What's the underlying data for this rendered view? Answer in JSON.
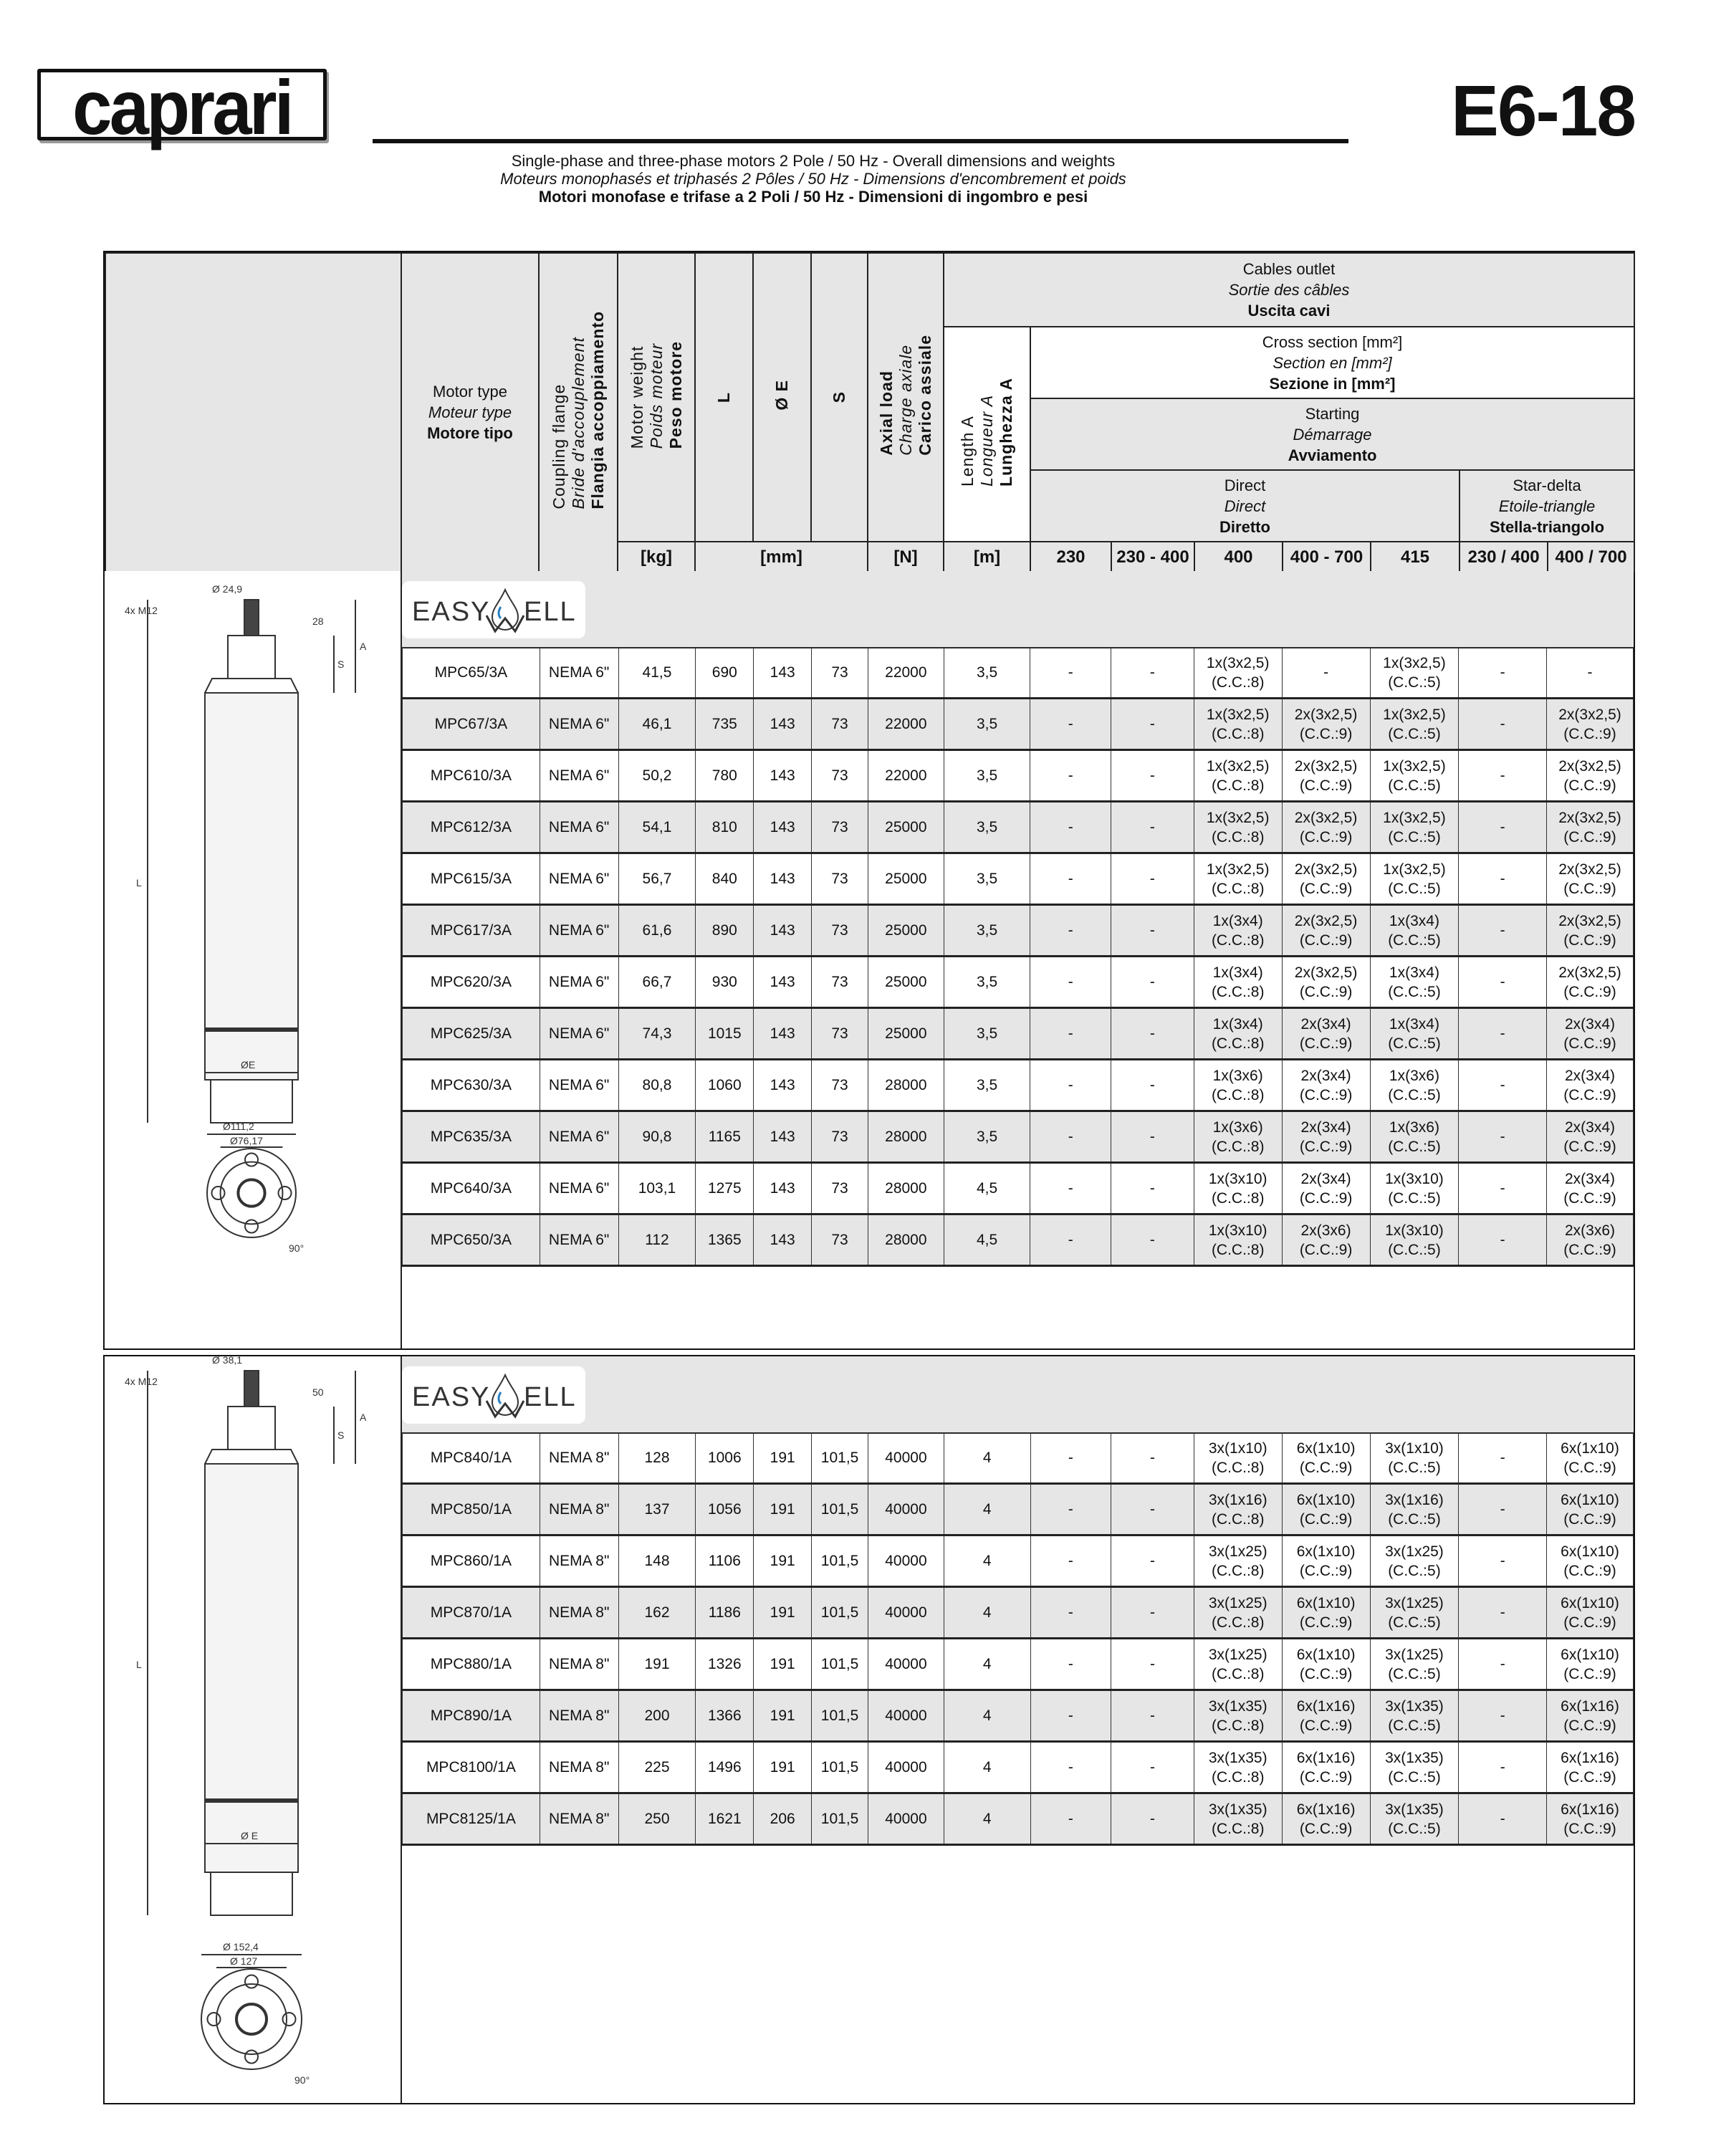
{
  "brand": "caprari",
  "code": "E6-18",
  "subtitle": [
    "Single-phase and three-phase motors 2 Pole / 50 Hz - Overall dimensions and weights",
    "Moteurs monophasés et triphasés 2 Pôles / 50 Hz - Dimensions d'encombrement et poids",
    "Motori monofase e trifase a 2 Poli / 50 Hz - Dimensioni di ingombro e pesi"
  ],
  "header": {
    "motor_type": [
      "Motor type",
      "Moteur type",
      "Motore tipo"
    ],
    "coupling_flange": [
      "Coupling flange",
      "Bride d'accouplement",
      "Flangia accoppiamento"
    ],
    "motor_weight": [
      "Motor weight",
      "Poids moteur",
      "Peso motore"
    ],
    "L": "L",
    "E": "Ø E",
    "S": "S",
    "axial_load": [
      "Axial load",
      "Charge axiale",
      "Carico assiale"
    ],
    "cables_outlet": [
      "Cables outlet",
      "Sortie des câbles",
      "Uscita cavi"
    ],
    "length_a": [
      "Length A",
      "Longueur A",
      "Lunghezza A"
    ],
    "cross_section": [
      "Cross section [mm²]",
      "Section en [mm²]",
      "Sezione in [mm²]"
    ],
    "starting": [
      "Starting",
      "Démarrage",
      "Avviamento"
    ],
    "direct": [
      "Direct",
      "Direct",
      "Diretto"
    ],
    "star_delta": [
      "Star-delta",
      "Etoile-triangle",
      "Stella-triangolo"
    ],
    "units": {
      "kg": "[kg]",
      "mm": "[mm]",
      "N": "[N]",
      "m": "[m]"
    },
    "voltages": [
      "230",
      "230 - 400",
      "400",
      "400 - 700",
      "415",
      "230 / 400",
      "400 / 700"
    ]
  },
  "sections": [
    {
      "logo": {
        "left": "EASY",
        "right": "ELL"
      },
      "drawing_labels": {
        "shaft": "Ø 24,9",
        "bolts": "4x M12",
        "dim1": "28",
        "S": "S",
        "A": "A",
        "L": "L",
        "E": "ØE",
        "outer": "Ø111,2",
        "inner": "Ø76,17",
        "angle": "90°"
      },
      "rows": [
        [
          "MPC65/3A",
          "NEMA 6\"",
          "41,5",
          "690",
          "143",
          "73",
          "22000",
          "3,5",
          "-",
          "-",
          "1x(3x2,5)\n(C.C.:8)",
          "-",
          "1x(3x2,5)\n(C.C.:5)",
          "-",
          "-"
        ],
        [
          "MPC67/3A",
          "NEMA 6\"",
          "46,1",
          "735",
          "143",
          "73",
          "22000",
          "3,5",
          "-",
          "-",
          "1x(3x2,5)\n(C.C.:8)",
          "2x(3x2,5)\n(C.C.:9)",
          "1x(3x2,5)\n(C.C.:5)",
          "-",
          "2x(3x2,5)\n(C.C.:9)"
        ],
        [
          "MPC610/3A",
          "NEMA 6\"",
          "50,2",
          "780",
          "143",
          "73",
          "22000",
          "3,5",
          "-",
          "-",
          "1x(3x2,5)\n(C.C.:8)",
          "2x(3x2,5)\n(C.C.:9)",
          "1x(3x2,5)\n(C.C.:5)",
          "-",
          "2x(3x2,5)\n(C.C.:9)"
        ],
        [
          "MPC612/3A",
          "NEMA 6\"",
          "54,1",
          "810",
          "143",
          "73",
          "25000",
          "3,5",
          "-",
          "-",
          "1x(3x2,5)\n(C.C.:8)",
          "2x(3x2,5)\n(C.C.:9)",
          "1x(3x2,5)\n(C.C.:5)",
          "-",
          "2x(3x2,5)\n(C.C.:9)"
        ],
        [
          "MPC615/3A",
          "NEMA 6\"",
          "56,7",
          "840",
          "143",
          "73",
          "25000",
          "3,5",
          "-",
          "-",
          "1x(3x2,5)\n(C.C.:8)",
          "2x(3x2,5)\n(C.C.:9)",
          "1x(3x2,5)\n(C.C.:5)",
          "-",
          "2x(3x2,5)\n(C.C.:9)"
        ],
        [
          "MPC617/3A",
          "NEMA 6\"",
          "61,6",
          "890",
          "143",
          "73",
          "25000",
          "3,5",
          "-",
          "-",
          "1x(3x4)\n(C.C.:8)",
          "2x(3x2,5)\n(C.C.:9)",
          "1x(3x4)\n(C.C.:5)",
          "-",
          "2x(3x2,5)\n(C.C.:9)"
        ],
        [
          "MPC620/3A",
          "NEMA 6\"",
          "66,7",
          "930",
          "143",
          "73",
          "25000",
          "3,5",
          "-",
          "-",
          "1x(3x4)\n(C.C.:8)",
          "2x(3x2,5)\n(C.C.:9)",
          "1x(3x4)\n(C.C.:5)",
          "-",
          "2x(3x2,5)\n(C.C.:9)"
        ],
        [
          "MPC625/3A",
          "NEMA 6\"",
          "74,3",
          "1015",
          "143",
          "73",
          "25000",
          "3,5",
          "-",
          "-",
          "1x(3x4)\n(C.C.:8)",
          "2x(3x4)\n(C.C.:9)",
          "1x(3x4)\n(C.C.:5)",
          "-",
          "2x(3x4)\n(C.C.:9)"
        ],
        [
          "MPC630/3A",
          "NEMA 6\"",
          "80,8",
          "1060",
          "143",
          "73",
          "28000",
          "3,5",
          "-",
          "-",
          "1x(3x6)\n(C.C.:8)",
          "2x(3x4)\n(C.C.:9)",
          "1x(3x6)\n(C.C.:5)",
          "-",
          "2x(3x4)\n(C.C.:9)"
        ],
        [
          "MPC635/3A",
          "NEMA 6\"",
          "90,8",
          "1165",
          "143",
          "73",
          "28000",
          "3,5",
          "-",
          "-",
          "1x(3x6)\n(C.C.:8)",
          "2x(3x4)\n(C.C.:9)",
          "1x(3x6)\n(C.C.:5)",
          "-",
          "2x(3x4)\n(C.C.:9)"
        ],
        [
          "MPC640/3A",
          "NEMA 6\"",
          "103,1",
          "1275",
          "143",
          "73",
          "28000",
          "4,5",
          "-",
          "-",
          "1x(3x10)\n(C.C.:8)",
          "2x(3x4)\n(C.C.:9)",
          "1x(3x10)\n(C.C.:5)",
          "-",
          "2x(3x4)\n(C.C.:9)"
        ],
        [
          "MPC650/3A",
          "NEMA 6\"",
          "112",
          "1365",
          "143",
          "73",
          "28000",
          "4,5",
          "-",
          "-",
          "1x(3x10)\n(C.C.:8)",
          "2x(3x6)\n(C.C.:9)",
          "1x(3x10)\n(C.C.:5)",
          "-",
          "2x(3x6)\n(C.C.:9)"
        ]
      ]
    },
    {
      "logo": {
        "left": "EASY",
        "right": "ELL"
      },
      "drawing_labels": {
        "shaft": "Ø 38,1",
        "bolts": "4x M12",
        "dim1": "50",
        "S": "S",
        "A": "A",
        "L": "L",
        "E": "Ø E",
        "outer": "Ø 152,4",
        "inner": "Ø 127",
        "angle": "90°"
      },
      "rows": [
        [
          "MPC840/1A",
          "NEMA 8\"",
          "128",
          "1006",
          "191",
          "101,5",
          "40000",
          "4",
          "-",
          "-",
          "3x(1x10)\n(C.C.:8)",
          "6x(1x10)\n(C.C.:9)",
          "3x(1x10)\n(C.C.:5)",
          "-",
          "6x(1x10)\n(C.C.:9)"
        ],
        [
          "MPC850/1A",
          "NEMA 8\"",
          "137",
          "1056",
          "191",
          "101,5",
          "40000",
          "4",
          "-",
          "-",
          "3x(1x16)\n(C.C.:8)",
          "6x(1x10)\n(C.C.:9)",
          "3x(1x16)\n(C.C.:5)",
          "-",
          "6x(1x10)\n(C.C.:9)"
        ],
        [
          "MPC860/1A",
          "NEMA 8\"",
          "148",
          "1106",
          "191",
          "101,5",
          "40000",
          "4",
          "-",
          "-",
          "3x(1x25)\n(C.C.:8)",
          "6x(1x10)\n(C.C.:9)",
          "3x(1x25)\n(C.C.:5)",
          "-",
          "6x(1x10)\n(C.C.:9)"
        ],
        [
          "MPC870/1A",
          "NEMA 8\"",
          "162",
          "1186",
          "191",
          "101,5",
          "40000",
          "4",
          "-",
          "-",
          "3x(1x25)\n(C.C.:8)",
          "6x(1x10)\n(C.C.:9)",
          "3x(1x25)\n(C.C.:5)",
          "-",
          "6x(1x10)\n(C.C.:9)"
        ],
        [
          "MPC880/1A",
          "NEMA 8\"",
          "191",
          "1326",
          "191",
          "101,5",
          "40000",
          "4",
          "-",
          "-",
          "3x(1x25)\n(C.C.:8)",
          "6x(1x10)\n(C.C.:9)",
          "3x(1x25)\n(C.C.:5)",
          "-",
          "6x(1x10)\n(C.C.:9)"
        ],
        [
          "MPC890/1A",
          "NEMA 8\"",
          "200",
          "1366",
          "191",
          "101,5",
          "40000",
          "4",
          "-",
          "-",
          "3x(1x35)\n(C.C.:8)",
          "6x(1x16)\n(C.C.:9)",
          "3x(1x35)\n(C.C.:5)",
          "-",
          "6x(1x16)\n(C.C.:9)"
        ],
        [
          "MPC8100/1A",
          "NEMA 8\"",
          "225",
          "1496",
          "191",
          "101,5",
          "40000",
          "4",
          "-",
          "-",
          "3x(1x35)\n(C.C.:8)",
          "6x(1x16)\n(C.C.:9)",
          "3x(1x35)\n(C.C.:5)",
          "-",
          "6x(1x16)\n(C.C.:9)"
        ],
        [
          "MPC8125/1A",
          "NEMA 8\"",
          "250",
          "1621",
          "206",
          "101,5",
          "40000",
          "4",
          "-",
          "-",
          "3x(1x35)\n(C.C.:8)",
          "6x(1x16)\n(C.C.:9)",
          "3x(1x35)\n(C.C.:5)",
          "-",
          "6x(1x16)\n(C.C.:9)"
        ]
      ]
    }
  ],
  "colors": {
    "header_grey": "#e6e6e6",
    "line": "#222222",
    "drop_blue": "#2a7fc1"
  }
}
